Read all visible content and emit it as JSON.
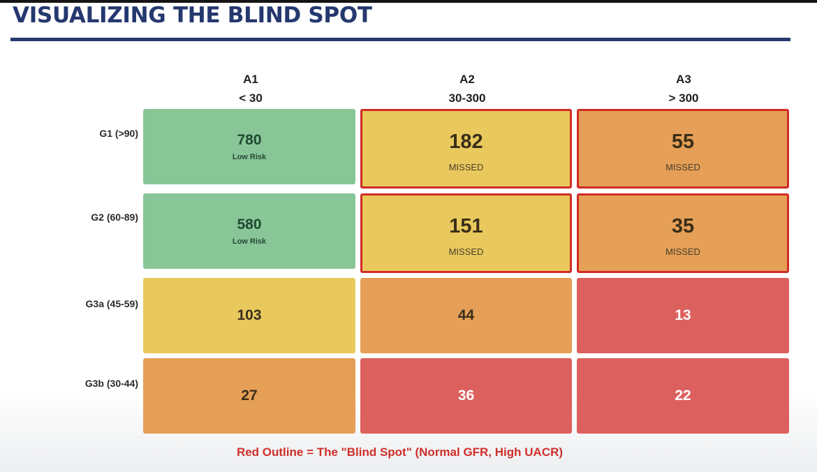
{
  "title": "VISUALIZING THE BLIND SPOT",
  "columns": [
    {
      "name": "A1",
      "range": "< 30"
    },
    {
      "name": "A2",
      "range": "30-300"
    },
    {
      "name": "A3",
      "range": "> 300"
    }
  ],
  "rows": [
    {
      "label": "G1 (>90)",
      "cells": [
        {
          "value": "780",
          "note": "Low Risk",
          "color": "green",
          "outlined": false
        },
        {
          "value": "182",
          "note": "MISSED",
          "color": "yellow",
          "outlined": true
        },
        {
          "value": "55",
          "note": "MISSED",
          "color": "orange",
          "outlined": true
        }
      ]
    },
    {
      "label": "G2 (60-89)",
      "cells": [
        {
          "value": "580",
          "note": "Low Risk",
          "color": "green",
          "outlined": false
        },
        {
          "value": "151",
          "note": "MISSED",
          "color": "yellow",
          "outlined": true
        },
        {
          "value": "35",
          "note": "MISSED",
          "color": "orange",
          "outlined": true
        }
      ]
    },
    {
      "label": "G3a (45-59)",
      "cells": [
        {
          "value": "103",
          "color": "yellow",
          "outlined": false
        },
        {
          "value": "44",
          "color": "orange",
          "outlined": false
        },
        {
          "value": "13",
          "color": "red",
          "outlined": false
        }
      ]
    },
    {
      "label": "G3b (30-44)",
      "cells": [
        {
          "value": "27",
          "color": "orange",
          "outlined": false
        },
        {
          "value": "36",
          "color": "red",
          "outlined": false
        },
        {
          "value": "22",
          "color": "red",
          "outlined": false
        }
      ]
    }
  ],
  "caption": "Red Outline = The \"Blind Spot\" (Normal GFR, High UACR)",
  "colors": {
    "title": "#25386f",
    "green": "#88c698",
    "yellow": "#e9c95d",
    "orange": "#e59f56",
    "red": "#dc605e",
    "outline": "#d12b25",
    "caption": "#cf2f2a"
  }
}
